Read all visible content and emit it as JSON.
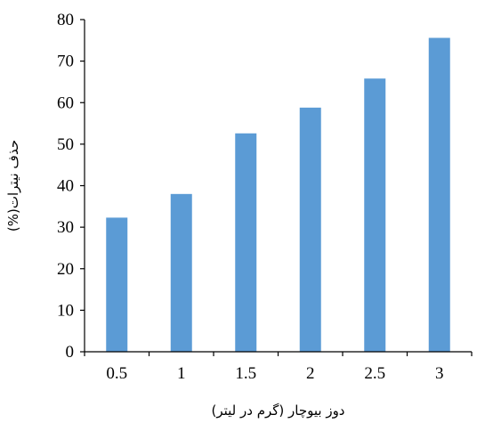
{
  "chart_data": {
    "type": "bar",
    "title": "",
    "xlabel": "دوز بیوچار (گرم در لیتر)",
    "ylabel": "حذف نیترات(%)",
    "categories": [
      "0.5",
      "1",
      "1.5",
      "2",
      "2.5",
      "3"
    ],
    "values": [
      32.3,
      38.0,
      52.6,
      58.8,
      65.8,
      75.6
    ],
    "ylim": [
      0,
      80
    ],
    "yticks": [
      "0",
      "10",
      "20",
      "30",
      "40",
      "50",
      "60",
      "70",
      "80"
    ],
    "grid": false,
    "legend": "none",
    "bar_color": "#5b9bd5",
    "axis_color": "#000000"
  }
}
